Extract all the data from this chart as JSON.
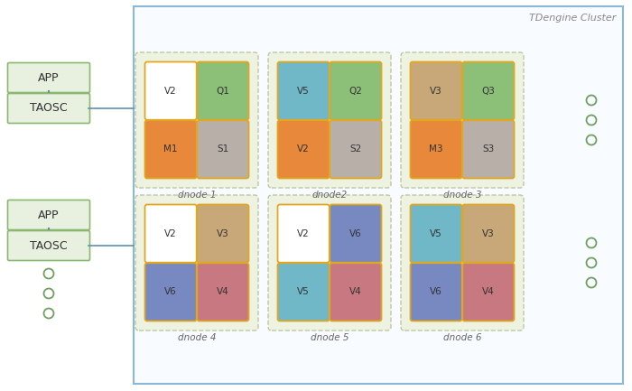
{
  "bg_color": "#ffffff",
  "cluster_border": "#8ab8d8",
  "cluster_title": "TDengine Cluster",
  "cluster_title_color": "#888888",
  "app_box_fill": "#e8f0e0",
  "app_box_border": "#8ab870",
  "app_box_text_color": "#333333",
  "cell_border_color": "#e0a820",
  "dot_color": "#70a060",
  "dnodes_row1": [
    {
      "label": "dnode 1",
      "cells": [
        {
          "text": "V2",
          "color": "#ffffff"
        },
        {
          "text": "Q1",
          "color": "#8cbf78"
        },
        {
          "text": "M1",
          "color": "#e8883a"
        },
        {
          "text": "S1",
          "color": "#b8b0a8"
        }
      ]
    },
    {
      "label": "dnode2",
      "cells": [
        {
          "text": "V5",
          "color": "#70b8c8"
        },
        {
          "text": "Q2",
          "color": "#8cbf78"
        },
        {
          "text": "V2",
          "color": "#e8883a"
        },
        {
          "text": "S2",
          "color": "#b8b0a8"
        }
      ]
    },
    {
      "label": "dnode 3",
      "cells": [
        {
          "text": "V3",
          "color": "#c8a878"
        },
        {
          "text": "Q3",
          "color": "#8cbf78"
        },
        {
          "text": "M3",
          "color": "#e8883a"
        },
        {
          "text": "S3",
          "color": "#b8b0a8"
        }
      ]
    }
  ],
  "dnodes_row2": [
    {
      "label": "dnode 4",
      "cells": [
        {
          "text": "V2",
          "color": "#ffffff"
        },
        {
          "text": "V3",
          "color": "#c8a878"
        },
        {
          "text": "V6",
          "color": "#7888c0"
        },
        {
          "text": "V4",
          "color": "#c87880"
        }
      ]
    },
    {
      "label": "dnode 5",
      "cells": [
        {
          "text": "V2",
          "color": "#ffffff"
        },
        {
          "text": "V6",
          "color": "#7888c0"
        },
        {
          "text": "V5",
          "color": "#70b8c8"
        },
        {
          "text": "V4",
          "color": "#c87880"
        }
      ]
    },
    {
      "label": "dnode 6",
      "cells": [
        {
          "text": "V5",
          "color": "#70b8c8"
        },
        {
          "text": "V3",
          "color": "#c8a878"
        },
        {
          "text": "V6",
          "color": "#7888c0"
        },
        {
          "text": "V4",
          "color": "#c87880"
        }
      ]
    }
  ]
}
